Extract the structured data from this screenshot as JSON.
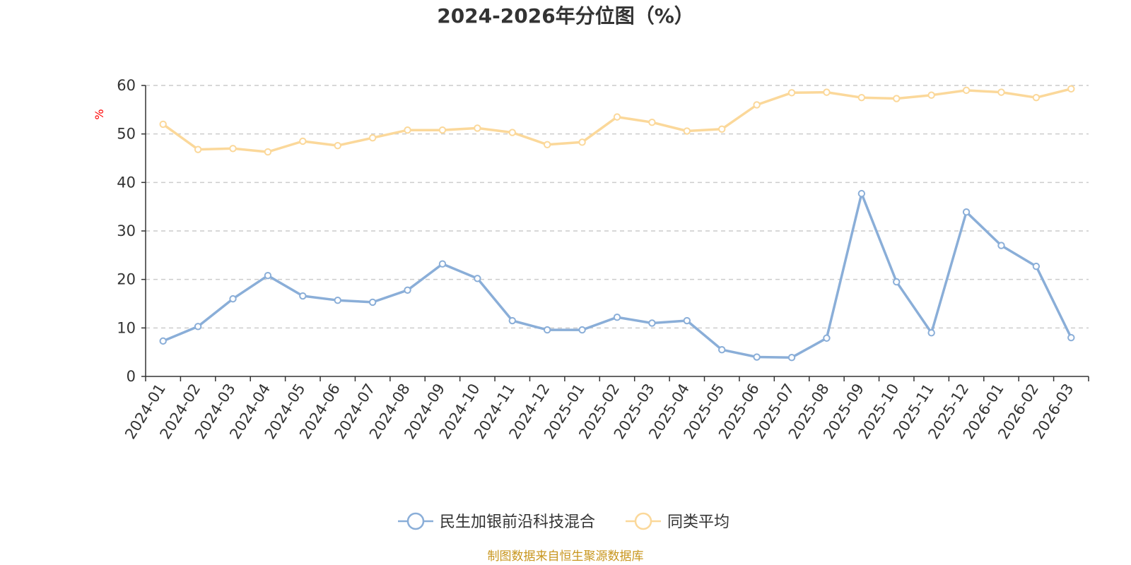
{
  "chart_data": {
    "type": "line",
    "title": "2024-2026年分位图（%）",
    "ylabel": "%",
    "ylim": [
      0,
      60
    ],
    "yticks": [
      "0",
      "10",
      "20",
      "30",
      "40",
      "50",
      "60"
    ],
    "grid": true,
    "legend_position": "bottom-center",
    "x": [
      "2024-01",
      "2024-02",
      "2024-03",
      "2024-04",
      "2024-05",
      "2024-06",
      "2024-07",
      "2024-08",
      "2024-09",
      "2024-10",
      "2024-11",
      "2024-12",
      "2025-01",
      "2025-02",
      "2025-03",
      "2025-04",
      "2025-05",
      "2025-06",
      "2025-07",
      "2025-08",
      "2025-09",
      "2025-10",
      "2025-11",
      "2025-12",
      "2026-01",
      "2026-02",
      "2026-03"
    ],
    "series": [
      {
        "name": "民生加银前沿科技混合",
        "color": "#8aaed8",
        "values": [
          7.3,
          10.3,
          16.0,
          20.8,
          16.6,
          15.7,
          15.3,
          17.8,
          23.2,
          20.2,
          11.5,
          9.6,
          9.6,
          12.2,
          11.0,
          11.5,
          5.5,
          4.0,
          3.9,
          7.9,
          37.7,
          19.5,
          9.0,
          33.9,
          27.0,
          22.7,
          8.0
        ]
      },
      {
        "name": "同类平均",
        "color": "#fbd89a",
        "values": [
          52.0,
          46.8,
          47.0,
          46.3,
          48.5,
          47.6,
          49.2,
          50.8,
          50.8,
          51.2,
          50.3,
          47.8,
          48.3,
          53.5,
          52.4,
          50.6,
          51.0,
          56.0,
          58.5,
          58.6,
          57.5,
          57.3,
          58.0,
          59.0,
          58.6,
          57.5,
          59.3
        ]
      }
    ],
    "source": "制图数据来自恒生聚源数据库"
  }
}
